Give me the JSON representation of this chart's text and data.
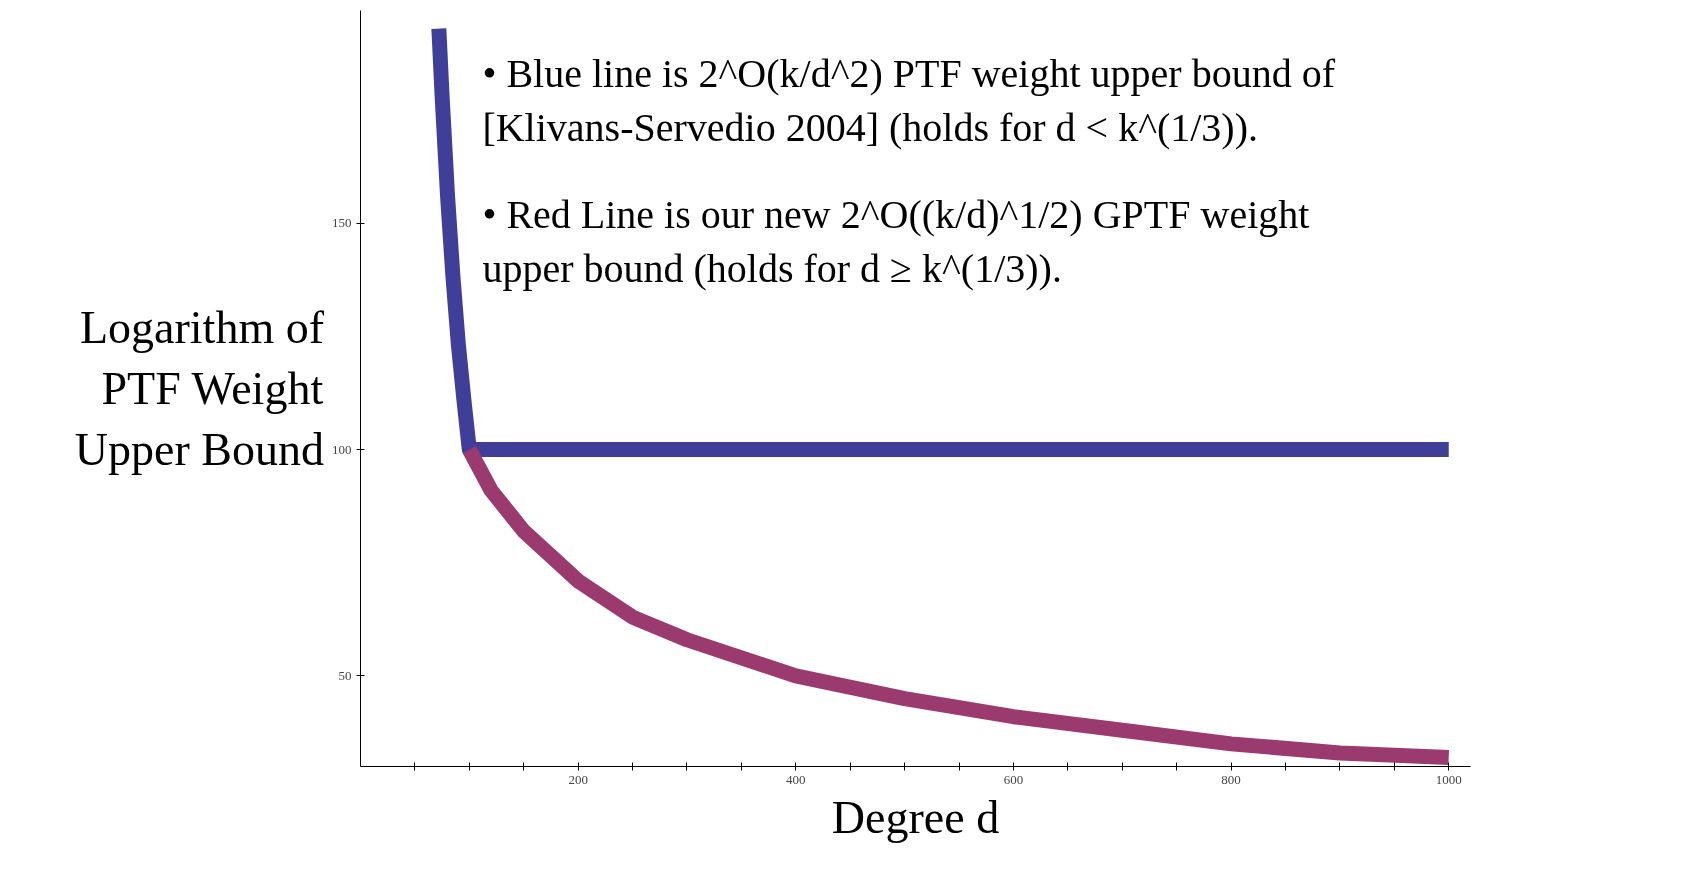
{
  "chart_data": {
    "type": "line",
    "xlabel": "Degree d",
    "ylabel": "Logarithm of PTF Weight Upper Bound",
    "annotations": [
      "• Blue line is 2^O(k/d^2) PTF weight upper bound of [Klivans-Servedio 2004] (holds for d < k^(1/3)).",
      "• Red Line is our new 2^O((k/d)^1/2) GPTF weight upper bound (holds for d ≥ k^(1/3))."
    ],
    "series": [
      {
        "color": "#3f3f9a",
        "x": [
          72,
          75,
          80,
          85,
          90,
          95,
          100,
          1000
        ],
        "values": [
          193,
          178,
          156,
          138,
          123,
          111,
          100,
          100
        ]
      },
      {
        "color": "#9b3a6f",
        "x": [
          100,
          120,
          150,
          200,
          250,
          300,
          400,
          500,
          600,
          700,
          800,
          900,
          1000
        ],
        "values": [
          100,
          91,
          82,
          71,
          63,
          58,
          50,
          45,
          41,
          38,
          35,
          33,
          32
        ]
      }
    ],
    "xlim": [
      0,
      1020
    ],
    "ylim": [
      30,
      197
    ],
    "xticks": [
      {
        "value": 50,
        "label": null
      },
      {
        "value": 100,
        "label": null
      },
      {
        "value": 150,
        "label": null
      },
      200,
      {
        "value": 250,
        "label": null
      },
      {
        "value": 300,
        "label": null
      },
      {
        "value": 350,
        "label": null
      },
      400,
      {
        "value": 450,
        "label": null
      },
      {
        "value": 500,
        "label": null
      },
      {
        "value": 550,
        "label": null
      },
      600,
      {
        "value": 650,
        "label": null
      },
      {
        "value": 700,
        "label": null
      },
      {
        "value": 750,
        "label": null
      },
      800,
      {
        "value": 850,
        "label": null
      },
      {
        "value": 900,
        "label": null
      },
      {
        "value": 950,
        "label": null
      },
      1000
    ],
    "yticks": [
      50,
      100,
      150
    ],
    "grid": false,
    "marker": "none",
    "line_style": "solid"
  }
}
